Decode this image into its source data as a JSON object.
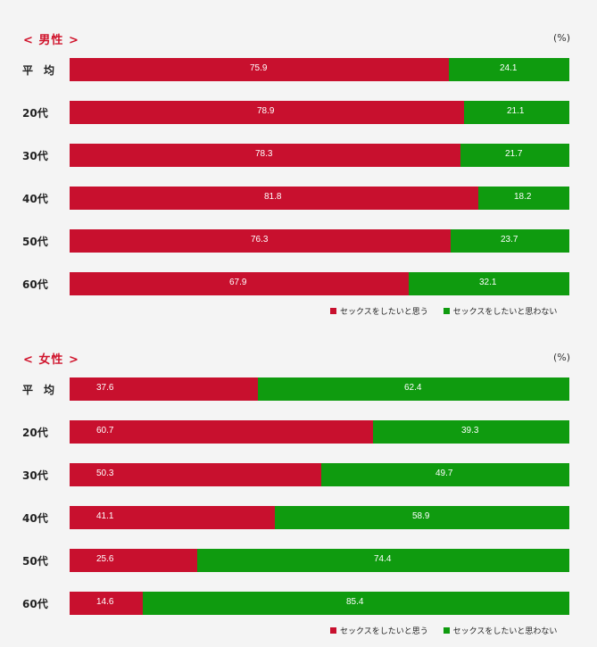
{
  "colors": {
    "want": "#c8102e",
    "not_want": "#0f9b0f"
  },
  "unit": "(%)",
  "legend": {
    "want": "セックスをしたいと思う",
    "not_want": "セックスをしたいと思わない"
  },
  "chart_data": [
    {
      "type": "bar",
      "orientation": "horizontal",
      "stacked": true,
      "title": "< 男性 >",
      "categories": [
        "平　均",
        "20代",
        "30代",
        "40代",
        "50代",
        "60代"
      ],
      "series": [
        {
          "name": "セックスをしたいと思う",
          "values": [
            75.9,
            78.9,
            78.3,
            81.8,
            76.3,
            67.9
          ]
        },
        {
          "name": "セックスをしたいと思わない",
          "values": [
            24.1,
            21.1,
            21.7,
            18.2,
            23.7,
            32.1
          ]
        }
      ],
      "xlim": [
        0,
        100
      ],
      "legend_position": "bottom-right"
    },
    {
      "type": "bar",
      "orientation": "horizontal",
      "stacked": true,
      "title": "< 女性 >",
      "categories": [
        "平　均",
        "20代",
        "30代",
        "40代",
        "50代",
        "60代"
      ],
      "series": [
        {
          "name": "セックスをしたいと思う",
          "values": [
            37.6,
            60.7,
            50.3,
            41.1,
            25.6,
            14.6
          ]
        },
        {
          "name": "セックスをしたいと思わない",
          "values": [
            62.4,
            39.3,
            49.7,
            58.9,
            74.4,
            85.4
          ]
        }
      ],
      "xlim": [
        0,
        100
      ],
      "legend_position": "bottom-right"
    }
  ]
}
